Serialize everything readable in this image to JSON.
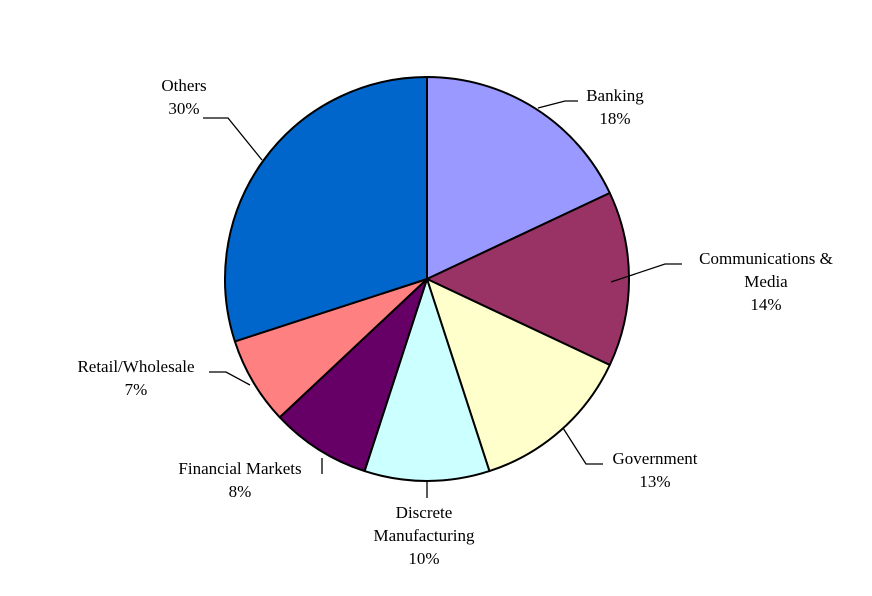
{
  "chart_data": {
    "type": "pie",
    "title": "",
    "start_angle_deg": 0,
    "direction": "clockwise",
    "slices": [
      {
        "label": "Banking",
        "label_lines": [
          "Banking"
        ],
        "value": 18,
        "value_text": "18%",
        "color": "#9999FF"
      },
      {
        "label": "Communications & Media",
        "label_lines": [
          "Communications &",
          "Media"
        ],
        "value": 14,
        "value_text": "14%",
        "color": "#993366"
      },
      {
        "label": "Government",
        "label_lines": [
          "Government"
        ],
        "value": 13,
        "value_text": "13%",
        "color": "#FFFFCC"
      },
      {
        "label": "Discrete Manufacturing",
        "label_lines": [
          "Discrete",
          "Manufacturing"
        ],
        "value": 10,
        "value_text": "10%",
        "color": "#CCFFFF"
      },
      {
        "label": "Financial Markets",
        "label_lines": [
          "Financial Markets"
        ],
        "value": 8,
        "value_text": "8%",
        "color": "#660066"
      },
      {
        "label": "Retail/Wholesale",
        "label_lines": [
          "Retail/Wholesale"
        ],
        "value": 7,
        "value_text": "7%",
        "color": "#FF8080"
      },
      {
        "label": "Others",
        "label_lines": [
          "Others"
        ],
        "value": 30,
        "value_text": "30%",
        "color": "#0066CC"
      }
    ],
    "legend": "none",
    "data_labels": "outside-with-leader-lines"
  }
}
